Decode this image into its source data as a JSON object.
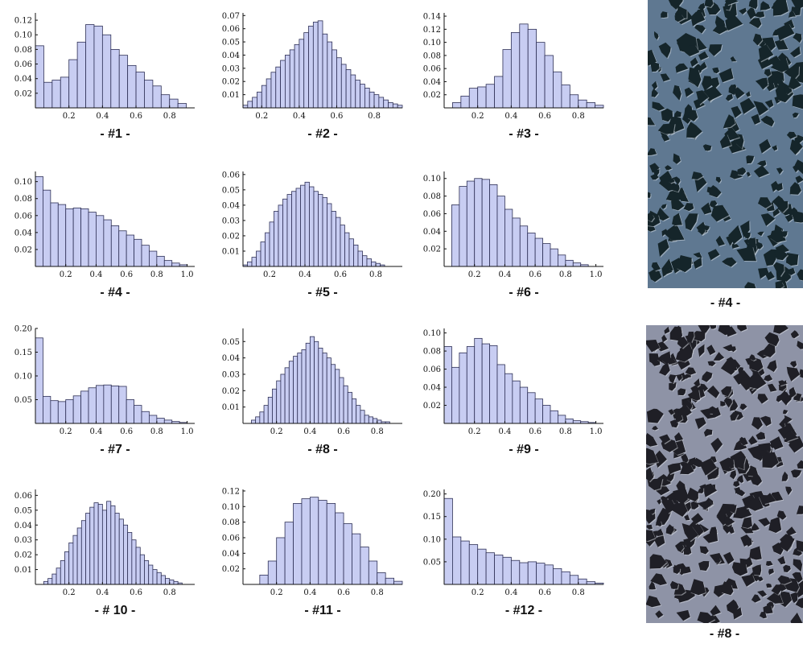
{
  "chart_data": [
    {
      "type": "bar",
      "caption": "- #1 -",
      "x_edges_start": 0.0,
      "bin_width": 0.05,
      "values": [
        0.085,
        0.035,
        0.038,
        0.042,
        0.066,
        0.09,
        0.114,
        0.112,
        0.1,
        0.08,
        0.072,
        0.058,
        0.049,
        0.038,
        0.03,
        0.018,
        0.012,
        0.006
      ],
      "xlim": [
        0.0,
        0.95
      ],
      "ylim": [
        0.0,
        0.13
      ],
      "xticks": [
        0.2,
        0.4,
        0.6,
        0.8
      ],
      "xtick_labels": [
        "0.2",
        "0.4",
        "0.6",
        "0.8"
      ],
      "yticks": [
        0.02,
        0.04,
        0.06,
        0.08,
        0.1,
        0.12
      ],
      "ytick_labels": [
        "0.02",
        "0.04",
        "0.06",
        "0.08",
        "0.10",
        "0.12"
      ]
    },
    {
      "type": "bar",
      "caption": "- #2 -",
      "x_edges_start": 0.1,
      "bin_width": 0.025,
      "values": [
        0.002,
        0.005,
        0.008,
        0.012,
        0.017,
        0.022,
        0.027,
        0.031,
        0.036,
        0.04,
        0.044,
        0.048,
        0.052,
        0.057,
        0.062,
        0.065,
        0.066,
        0.056,
        0.05,
        0.044,
        0.038,
        0.033,
        0.029,
        0.025,
        0.021,
        0.018,
        0.015,
        0.012,
        0.01,
        0.008,
        0.006,
        0.004,
        0.003,
        0.002
      ],
      "xlim": [
        0.1,
        0.95
      ],
      "ylim": [
        0.0,
        0.072
      ],
      "xticks": [
        0.2,
        0.4,
        0.6,
        0.8
      ],
      "xtick_labels": [
        "0.2",
        "0.4",
        "0.6",
        "0.8"
      ],
      "yticks": [
        0.01,
        0.02,
        0.03,
        0.04,
        0.05,
        0.06,
        0.07
      ],
      "ytick_labels": [
        "0.01",
        "0.02",
        "0.03",
        "0.04",
        "0.05",
        "0.06",
        "0.07"
      ]
    },
    {
      "type": "bar",
      "caption": "- #3 -",
      "x_edges_start": 0.05,
      "bin_width": 0.05,
      "values": [
        0.008,
        0.018,
        0.03,
        0.032,
        0.036,
        0.048,
        0.089,
        0.115,
        0.128,
        0.12,
        0.1,
        0.08,
        0.055,
        0.035,
        0.02,
        0.012,
        0.008,
        0.004
      ],
      "xlim": [
        0.0,
        0.95
      ],
      "ylim": [
        0.0,
        0.145
      ],
      "xticks": [
        0.2,
        0.4,
        0.6,
        0.8
      ],
      "xtick_labels": [
        "0.2",
        "0.4",
        "0.6",
        "0.8"
      ],
      "yticks": [
        0.02,
        0.04,
        0.06,
        0.08,
        0.1,
        0.12,
        0.14
      ],
      "ytick_labels": [
        "0.02",
        "0.04",
        "0.06",
        "0.08",
        "0.10",
        "0.12",
        "0.14"
      ]
    },
    {
      "type": "bar",
      "caption": "- #4 -",
      "x_edges_start": 0.0,
      "bin_width": 0.05,
      "values": [
        0.106,
        0.09,
        0.075,
        0.073,
        0.068,
        0.069,
        0.068,
        0.064,
        0.06,
        0.055,
        0.048,
        0.042,
        0.037,
        0.032,
        0.025,
        0.018,
        0.012,
        0.007,
        0.004,
        0.002
      ],
      "xlim": [
        0.0,
        1.05
      ],
      "ylim": [
        0.0,
        0.112
      ],
      "xticks": [
        0.2,
        0.4,
        0.6,
        0.8,
        1.0
      ],
      "xtick_labels": [
        "0.2",
        "0.4",
        "0.6",
        "0.8",
        "1.0"
      ],
      "yticks": [
        0.02,
        0.04,
        0.06,
        0.08,
        0.1
      ],
      "ytick_labels": [
        "0.02",
        "0.04",
        "0.06",
        "0.08",
        "0.10"
      ]
    },
    {
      "type": "bar",
      "caption": "- #5 -",
      "x_edges_start": 0.05,
      "bin_width": 0.025,
      "values": [
        0.001,
        0.003,
        0.006,
        0.01,
        0.016,
        0.022,
        0.029,
        0.036,
        0.04,
        0.044,
        0.047,
        0.049,
        0.051,
        0.053,
        0.055,
        0.052,
        0.049,
        0.047,
        0.045,
        0.041,
        0.036,
        0.032,
        0.027,
        0.022,
        0.018,
        0.014,
        0.01,
        0.007,
        0.005,
        0.003,
        0.002,
        0.001
      ],
      "xlim": [
        0.05,
        0.95
      ],
      "ylim": [
        0.0,
        0.062
      ],
      "xticks": [
        0.2,
        0.4,
        0.6,
        0.8
      ],
      "xtick_labels": [
        "0.2",
        "0.4",
        "0.6",
        "0.8"
      ],
      "yticks": [
        0.01,
        0.02,
        0.03,
        0.04,
        0.05,
        0.06
      ],
      "ytick_labels": [
        "0.01",
        "0.02",
        "0.03",
        "0.04",
        "0.05",
        "0.06"
      ]
    },
    {
      "type": "bar",
      "caption": "- #6 -",
      "x_edges_start": 0.05,
      "bin_width": 0.05,
      "values": [
        0.07,
        0.091,
        0.097,
        0.1,
        0.099,
        0.093,
        0.08,
        0.065,
        0.055,
        0.046,
        0.038,
        0.032,
        0.026,
        0.02,
        0.013,
        0.007,
        0.004,
        0.002
      ],
      "xlim": [
        0.0,
        1.05
      ],
      "ylim": [
        0.0,
        0.108
      ],
      "xticks": [
        0.2,
        0.4,
        0.6,
        0.8,
        1.0
      ],
      "xtick_labels": [
        "0.2",
        "0.4",
        "0.6",
        "0.8",
        "1.0"
      ],
      "yticks": [
        0.02,
        0.04,
        0.06,
        0.08,
        0.1
      ],
      "ytick_labels": [
        "0.02",
        "0.04",
        "0.06",
        "0.08",
        "0.10"
      ]
    },
    {
      "type": "bar",
      "caption": "- #7 -",
      "x_edges_start": 0.0,
      "bin_width": 0.05,
      "values": [
        0.18,
        0.057,
        0.048,
        0.046,
        0.05,
        0.058,
        0.068,
        0.075,
        0.08,
        0.081,
        0.079,
        0.078,
        0.05,
        0.038,
        0.025,
        0.017,
        0.011,
        0.007,
        0.004,
        0.002
      ],
      "xlim": [
        0.0,
        1.05
      ],
      "ylim": [
        0.0,
        0.2
      ],
      "xticks": [
        0.2,
        0.4,
        0.6,
        0.8,
        1.0
      ],
      "xtick_labels": [
        "0.2",
        "0.4",
        "0.6",
        "0.8",
        "1.0"
      ],
      "yticks": [
        0.05,
        0.1,
        0.15,
        0.2
      ],
      "ytick_labels": [
        "0.05",
        "0.10",
        "0.15",
        "0.20"
      ]
    },
    {
      "type": "bar",
      "caption": "- #8 -",
      "x_edges_start": 0.05,
      "bin_width": 0.025,
      "values": [
        0.002,
        0.004,
        0.007,
        0.011,
        0.016,
        0.021,
        0.026,
        0.03,
        0.034,
        0.038,
        0.041,
        0.043,
        0.045,
        0.049,
        0.053,
        0.05,
        0.046,
        0.043,
        0.04,
        0.036,
        0.033,
        0.028,
        0.023,
        0.019,
        0.015,
        0.011,
        0.008,
        0.005,
        0.004,
        0.003,
        0.002,
        0.001,
        0.001
      ],
      "xlim": [
        0.0,
        0.95
      ],
      "ylim": [
        0.0,
        0.058
      ],
      "xticks": [
        0.2,
        0.4,
        0.6,
        0.8
      ],
      "xtick_labels": [
        "0.2",
        "0.4",
        "0.6",
        "0.8"
      ],
      "yticks": [
        0.01,
        0.02,
        0.03,
        0.04,
        0.05
      ],
      "ytick_labels": [
        "0.01",
        "0.02",
        "0.03",
        "0.04",
        "0.05"
      ]
    },
    {
      "type": "bar",
      "caption": "- #9 -",
      "x_edges_start": 0.0,
      "bin_width": 0.05,
      "values": [
        0.085,
        0.062,
        0.078,
        0.085,
        0.094,
        0.088,
        0.086,
        0.065,
        0.055,
        0.047,
        0.04,
        0.034,
        0.027,
        0.02,
        0.014,
        0.009,
        0.005,
        0.003,
        0.002,
        0.001
      ],
      "xlim": [
        0.0,
        1.05
      ],
      "ylim": [
        0.0,
        0.105
      ],
      "xticks": [
        0.2,
        0.4,
        0.6,
        0.8,
        1.0
      ],
      "xtick_labels": [
        "0.2",
        "0.4",
        "0.6",
        "0.8",
        "1.0"
      ],
      "yticks": [
        0.02,
        0.04,
        0.06,
        0.08,
        0.1
      ],
      "ytick_labels": [
        "0.02",
        "0.04",
        "0.06",
        "0.08",
        "0.10"
      ]
    },
    {
      "type": "bar",
      "caption": "- # 10 -",
      "x_edges_start": 0.05,
      "bin_width": 0.025,
      "values": [
        0.002,
        0.004,
        0.007,
        0.011,
        0.016,
        0.022,
        0.028,
        0.033,
        0.038,
        0.043,
        0.048,
        0.052,
        0.055,
        0.054,
        0.05,
        0.056,
        0.053,
        0.048,
        0.044,
        0.04,
        0.035,
        0.03,
        0.025,
        0.02,
        0.016,
        0.013,
        0.01,
        0.008,
        0.006,
        0.004,
        0.003,
        0.002,
        0.001
      ],
      "xlim": [
        0.0,
        0.95
      ],
      "ylim": [
        0.0,
        0.064
      ],
      "xticks": [
        0.2,
        0.4,
        0.6,
        0.8
      ],
      "xtick_labels": [
        "0.2",
        "0.4",
        "0.6",
        "0.8"
      ],
      "yticks": [
        0.01,
        0.02,
        0.03,
        0.04,
        0.05,
        0.06
      ],
      "ytick_labels": [
        "0.01",
        "0.02",
        "0.03",
        "0.04",
        "0.05",
        "0.06"
      ]
    },
    {
      "type": "bar",
      "caption": "- #11 -",
      "x_edges_start": 0.1,
      "bin_width": 0.05,
      "values": [
        0.012,
        0.03,
        0.06,
        0.08,
        0.104,
        0.11,
        0.112,
        0.108,
        0.104,
        0.092,
        0.078,
        0.065,
        0.048,
        0.03,
        0.015,
        0.008,
        0.004
      ],
      "xlim": [
        0.0,
        0.95
      ],
      "ylim": [
        0.0,
        0.122
      ],
      "xticks": [
        0.2,
        0.4,
        0.6,
        0.8
      ],
      "xtick_labels": [
        "0.2",
        "0.4",
        "0.6",
        "0.8"
      ],
      "yticks": [
        0.02,
        0.04,
        0.06,
        0.08,
        0.1,
        0.12
      ],
      "ytick_labels": [
        "0.02",
        "0.04",
        "0.06",
        "0.08",
        "0.10",
        "0.12"
      ]
    },
    {
      "type": "bar",
      "caption": "- #12 -",
      "x_edges_start": 0.0,
      "bin_width": 0.05,
      "values": [
        0.19,
        0.105,
        0.096,
        0.088,
        0.078,
        0.07,
        0.065,
        0.06,
        0.053,
        0.048,
        0.05,
        0.047,
        0.043,
        0.035,
        0.028,
        0.02,
        0.012,
        0.006,
        0.003
      ],
      "xlim": [
        0.0,
        0.95
      ],
      "ylim": [
        0.0,
        0.21
      ],
      "xticks": [
        0.2,
        0.4,
        0.6,
        0.8
      ],
      "xtick_labels": [
        "0.2",
        "0.4",
        "0.6",
        "0.8"
      ],
      "yticks": [
        0.05,
        0.1,
        0.15,
        0.2
      ],
      "ytick_labels": [
        "0.05",
        "0.10",
        "0.15",
        "0.20"
      ]
    }
  ],
  "photos": [
    {
      "caption": "- #4 -",
      "palette": {
        "background": "#5f7891",
        "fragment": "#15252a",
        "highlight": "#cfd9e2"
      }
    },
    {
      "caption": "- #8 -",
      "palette": {
        "background": "#8e93a6",
        "fragment": "#1f1f26",
        "highlight": "#d6d8e0"
      }
    }
  ],
  "colors": {
    "bar_fill": "#c8cdf2",
    "bar_edge": "#2d2f55",
    "axis": "#111111"
  }
}
